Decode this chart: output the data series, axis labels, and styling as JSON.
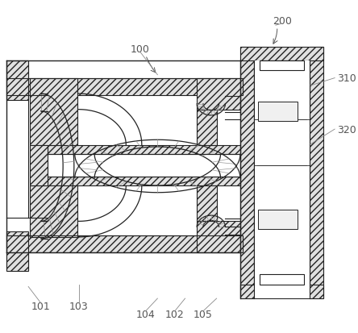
{
  "bg_color": "#ffffff",
  "lc": "#222222",
  "hc": "#bbbbbb",
  "label_color": "#555555",
  "label_fs": 9,
  "figsize": [
    4.44,
    4.14
  ],
  "dpi": 100
}
